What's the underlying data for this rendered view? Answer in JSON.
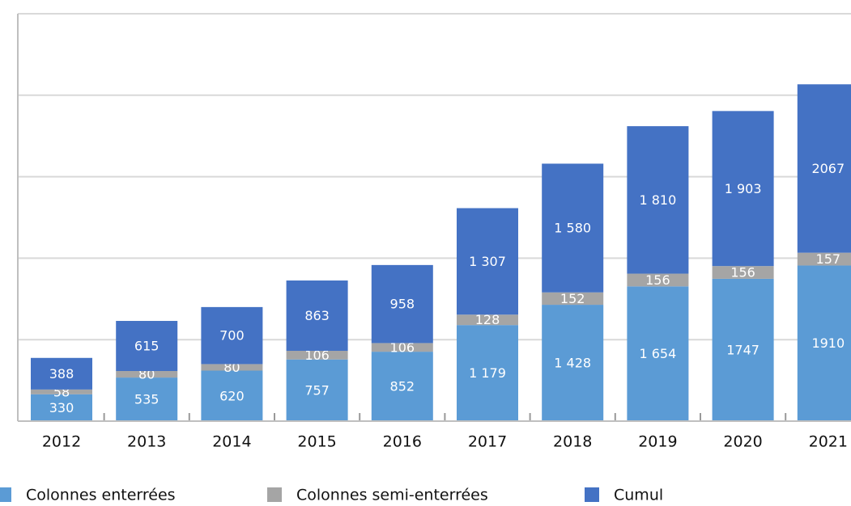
{
  "chart_data": {
    "type": "stacked_bar",
    "categories": [
      "2012",
      "2013",
      "2014",
      "2015",
      "2016",
      "2017",
      "2018",
      "2019",
      "2020",
      "2021"
    ],
    "series": [
      {
        "name": "Colonnes enterrées",
        "color": "#5b9bd5",
        "values": [
          330,
          535,
          620,
          757,
          852,
          1179,
          1428,
          1654,
          1747,
          1910
        ],
        "value_labels": [
          "330",
          "535",
          "620",
          "757",
          "852",
          "1 179",
          "1 428",
          "1 654",
          "1747",
          "1910"
        ]
      },
      {
        "name": "Colonnes semi-enterrées",
        "color": "#a5a5a5",
        "values": [
          58,
          80,
          80,
          106,
          106,
          128,
          152,
          156,
          156,
          157
        ]
      },
      {
        "name": "Cumul",
        "color": "#4472c4",
        "values": [
          388,
          615,
          700,
          863,
          958,
          1307,
          1580,
          1810,
          1903,
          2067
        ],
        "value_labels": [
          "388",
          "615",
          "700",
          "863",
          "958",
          "1 307",
          "1 580",
          "1 810",
          "1 903",
          "2067"
        ]
      }
    ],
    "ylim": [
      0,
      5000
    ],
    "yticks": [
      0,
      1000,
      2000,
      3000,
      4000,
      5000
    ],
    "grid": true,
    "legend": "bottom"
  }
}
